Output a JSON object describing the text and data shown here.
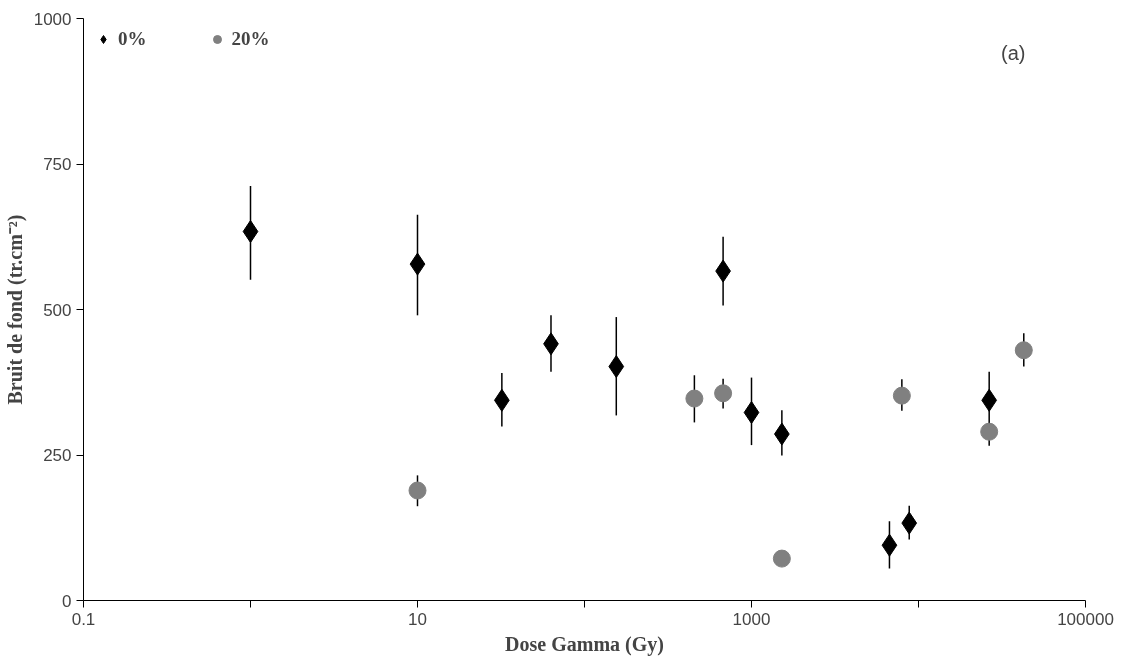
{
  "chart_data": {
    "type": "scatter",
    "xlabel": "Dose Gamma (Gy)",
    "ylabel": "Bruit de fond (tr.cm⁻²)",
    "log": "x",
    "xlim": [
      0.1,
      100000
    ],
    "ylim": [
      0,
      1000
    ],
    "xticks": [
      0.1,
      {
        "value": 1,
        "label": null
      },
      10,
      {
        "value": 100,
        "label": null
      },
      1000,
      {
        "value": 10000,
        "label": null
      },
      100000
    ],
    "yticks": [
      0,
      250,
      500,
      750,
      1000
    ],
    "grid": false,
    "legend": "top left",
    "annotations": [
      "(a)"
    ],
    "series": [
      {
        "name": "0%",
        "color": "#000000",
        "marker": "diamond",
        "x": [
          1,
          10,
          32,
          63,
          155,
          676,
          1000,
          1520,
          6700,
          8800,
          26500
        ],
        "values": [
          634,
          578,
          344,
          441,
          402,
          566,
          323,
          286,
          95,
          133,
          344
        ],
        "errors": [
          [
            551,
            712
          ],
          [
            490,
            663
          ],
          [
            299,
            391
          ],
          [
            393,
            490
          ],
          [
            318,
            487
          ],
          [
            507,
            625
          ],
          [
            267,
            383
          ],
          [
            249,
            327
          ],
          [
            55,
            136
          ],
          [
            105,
            163
          ],
          [
            312,
            393
          ]
        ]
      },
      {
        "name": "20%",
        "color": "#808080",
        "marker": "circle",
        "x": [
          10,
          455,
          676,
          1520,
          7950,
          26500,
          42700
        ],
        "values": [
          189,
          347,
          356,
          72,
          352,
          290,
          430
        ],
        "errors": [
          [
            162,
            215
          ],
          [
            306,
            387
          ],
          [
            330,
            381
          ],
          null,
          [
            326,
            380
          ],
          [
            266,
            312
          ],
          [
            402,
            459
          ]
        ]
      }
    ]
  }
}
